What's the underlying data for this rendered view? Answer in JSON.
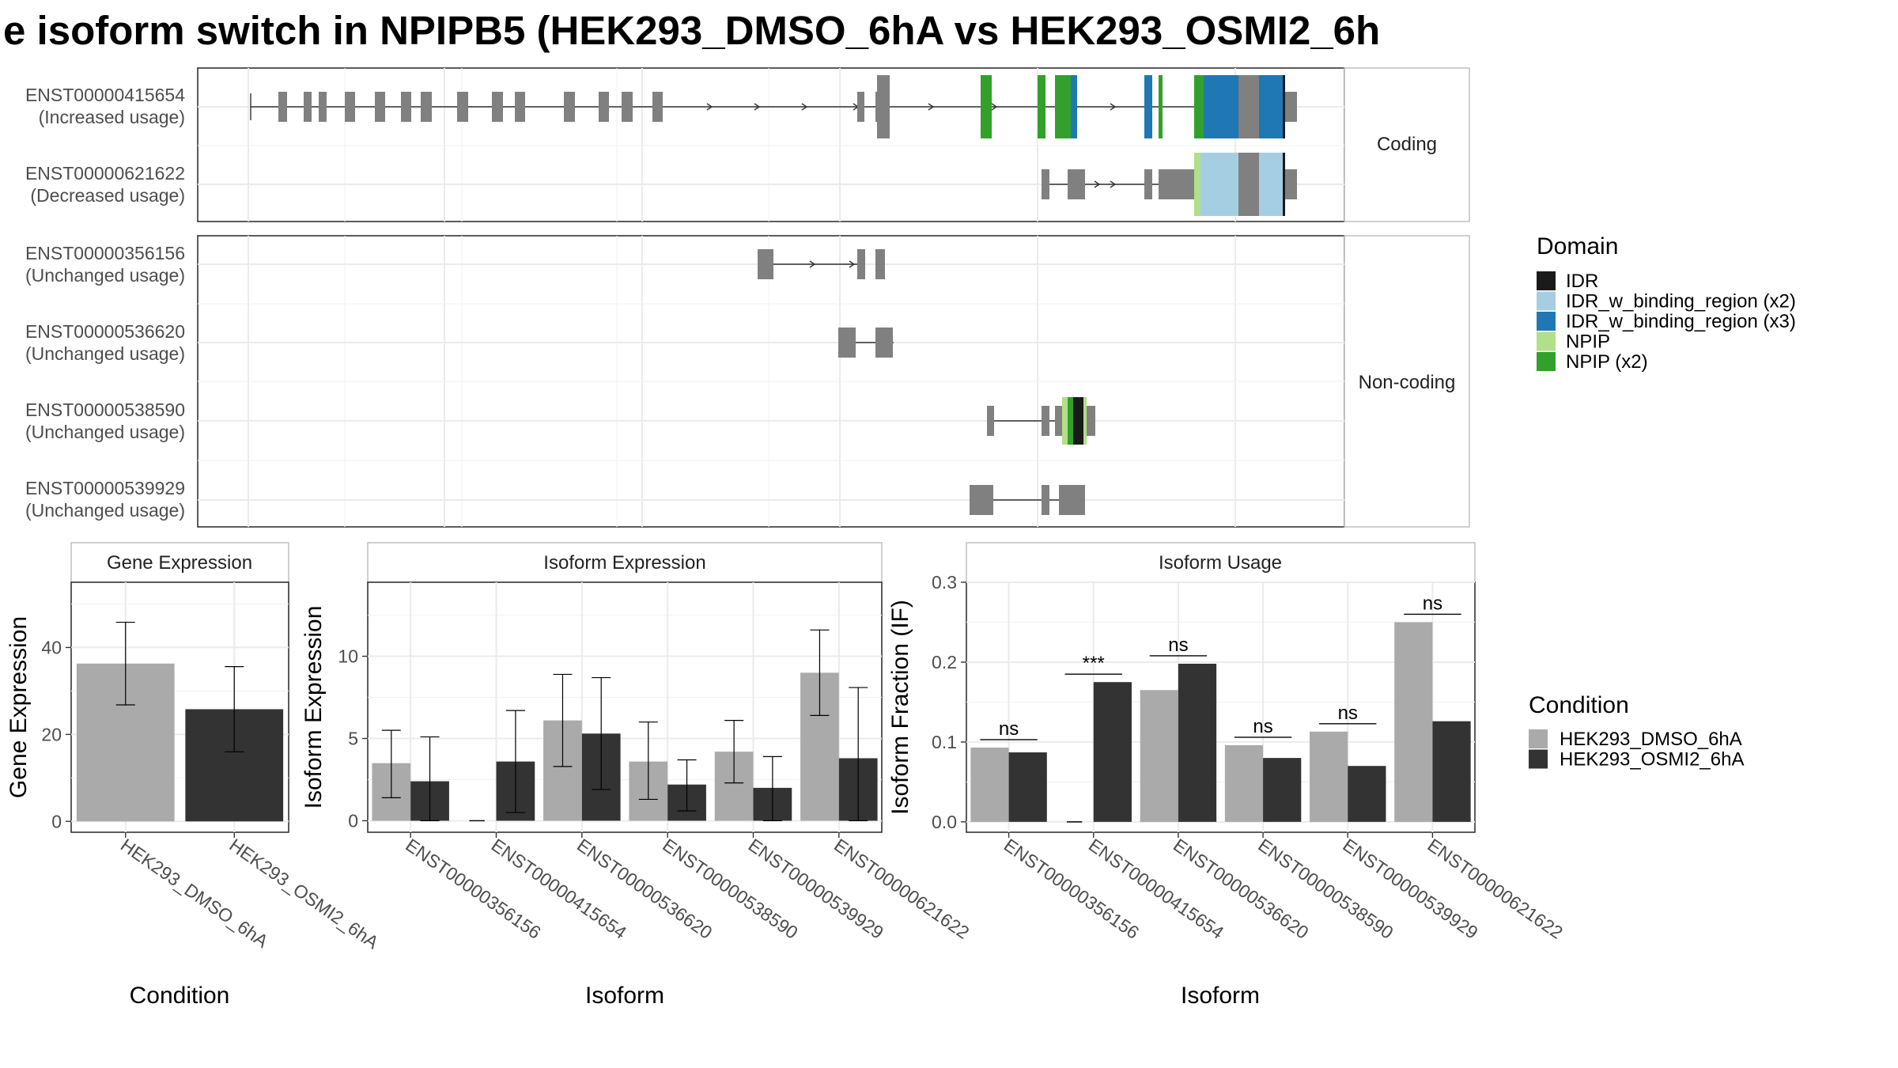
{
  "title": "e isoform switch in NPIPB5 (HEK293_DMSO_6hA vs HEK293_OSMI2_6h",
  "colors": {
    "gray_bar": "#aaaaaa",
    "dark_bar": "#333333",
    "exon": "#808080",
    "IDR": "#1a1a1a",
    "IDR_x2": "#a6cee3",
    "IDR_x3": "#1f78b4",
    "NPIP": "#b2df8a",
    "NPIP_x2": "#33a02c"
  },
  "chart_data": [
    {
      "type": "gene-structure",
      "facets": [
        "Coding",
        "Non-coding"
      ],
      "transcripts": [
        {
          "id": "ENST00000415654",
          "usage": "(Increased usage)",
          "facet": "Coding"
        },
        {
          "id": "ENST00000621622",
          "usage": "(Decreased usage)",
          "facet": "Coding"
        },
        {
          "id": "ENST00000356156",
          "usage": "(Unchanged usage)",
          "facet": "Non-coding"
        },
        {
          "id": "ENST00000536620",
          "usage": "(Unchanged usage)",
          "facet": "Non-coding"
        },
        {
          "id": "ENST00000538590",
          "usage": "(Unchanged usage)",
          "facet": "Non-coding"
        },
        {
          "id": "ENST00000539929",
          "usage": "(Unchanged usage)",
          "facet": "Non-coding"
        }
      ],
      "legend": {
        "title": "Domain",
        "entries": [
          {
            "label": "IDR",
            "color": "#1a1a1a"
          },
          {
            "label": "IDR_w_binding_region (x2)",
            "color": "#a6cee3"
          },
          {
            "label": "IDR_w_binding_region (x3)",
            "color": "#1f78b4"
          },
          {
            "label": "NPIP",
            "color": "#b2df8a"
          },
          {
            "label": "NPIP (x2)",
            "color": "#33a02c"
          }
        ]
      }
    },
    {
      "type": "bar",
      "title": "Gene Expression",
      "xlabel": "Condition",
      "ylabel": "Gene Expression",
      "categories": [
        "HEK293_DMSO_6hA",
        "HEK293_OSMI2_6hA"
      ],
      "values": [
        36.3,
        25.8
      ],
      "err_low": [
        26.8,
        16.0
      ],
      "err_high": [
        45.8,
        35.6
      ],
      "ylim": [
        -2.5,
        55
      ],
      "ticks": [
        0,
        20,
        40
      ]
    },
    {
      "type": "bar",
      "title": "Isoform Expression",
      "xlabel": "Isoform",
      "ylabel": "Isoform Expression",
      "categories": [
        "ENST00000356156",
        "ENST00000415654",
        "ENST00000536620",
        "ENST00000538590",
        "ENST00000539929",
        "ENST00000621622"
      ],
      "series": [
        {
          "name": "HEK293_DMSO_6hA",
          "values": [
            3.5,
            0.0,
            6.1,
            3.6,
            4.2,
            9.0
          ],
          "err_low": [
            1.4,
            0.0,
            3.3,
            1.3,
            2.3,
            6.4
          ],
          "err_high": [
            5.5,
            0.0,
            8.9,
            6.0,
            6.1,
            11.6
          ]
        },
        {
          "name": "HEK293_OSMI2_6hA",
          "values": [
            2.4,
            3.6,
            5.3,
            2.2,
            2.0,
            3.8
          ],
          "err_low": [
            0.0,
            0.5,
            1.9,
            0.6,
            0.0,
            0.0
          ],
          "err_high": [
            5.1,
            6.7,
            8.7,
            3.7,
            3.9,
            8.1
          ]
        }
      ],
      "ylim": [
        -0.7,
        14.5
      ],
      "ticks": [
        0,
        5,
        10
      ]
    },
    {
      "type": "bar",
      "title": "Isoform Usage",
      "xlabel": "Isoform",
      "ylabel": "Isoform Fraction (IF)",
      "categories": [
        "ENST00000356156",
        "ENST00000415654",
        "ENST00000536620",
        "ENST00000538590",
        "ENST00000539929",
        "ENST00000621622"
      ],
      "series": [
        {
          "name": "HEK293_DMSO_6hA",
          "values": [
            0.093,
            0.0,
            0.165,
            0.096,
            0.113,
            0.25
          ]
        },
        {
          "name": "HEK293_OSMI2_6hA",
          "values": [
            0.087,
            0.175,
            0.198,
            0.08,
            0.07,
            0.126
          ]
        }
      ],
      "significance": [
        "ns",
        "***",
        "ns",
        "ns",
        "ns",
        "ns"
      ],
      "ylim": [
        -0.013,
        0.3
      ],
      "ticks": [
        0.0,
        0.1,
        0.2,
        0.3
      ],
      "tick_labels": [
        "0.0",
        "0.1",
        "0.2",
        "0.3"
      ]
    }
  ],
  "condition_legend": {
    "title": "Condition",
    "entries": [
      {
        "label": "HEK293_DMSO_6hA",
        "color": "#aaaaaa"
      },
      {
        "label": "HEK293_OSMI2_6hA",
        "color": "#333333"
      }
    ]
  }
}
